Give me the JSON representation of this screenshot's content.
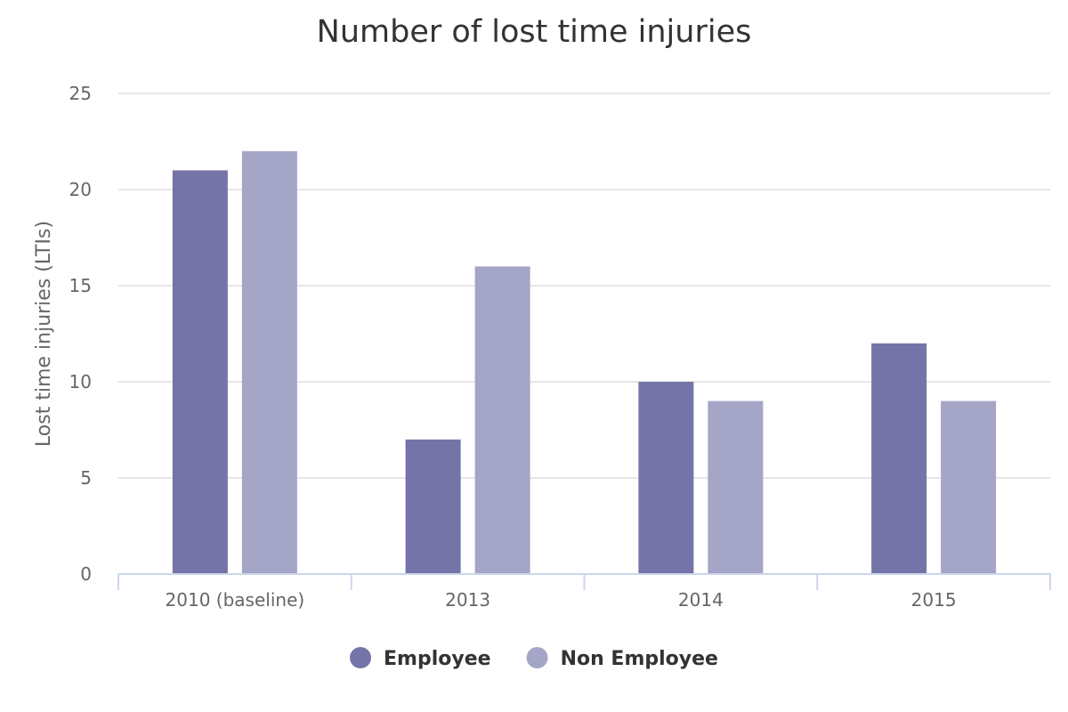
{
  "chart_data": {
    "type": "bar",
    "title": "Number of lost time injuries",
    "xlabel": "",
    "ylabel": "Lost time injuries (LTIs)",
    "categories": [
      "2010 (baseline)",
      "2013",
      "2014",
      "2015"
    ],
    "series": [
      {
        "name": "Employee",
        "color": "#7474a8",
        "values": [
          21,
          7,
          10,
          12
        ]
      },
      {
        "name": "Non Employee",
        "color": "#a5a5c7",
        "values": [
          22,
          16,
          9,
          9
        ]
      }
    ],
    "ylim": [
      0,
      25
    ],
    "yticks": [
      "0",
      "5",
      "10",
      "15",
      "20",
      "25"
    ],
    "grid": true,
    "legend_position": "bottom-center"
  }
}
